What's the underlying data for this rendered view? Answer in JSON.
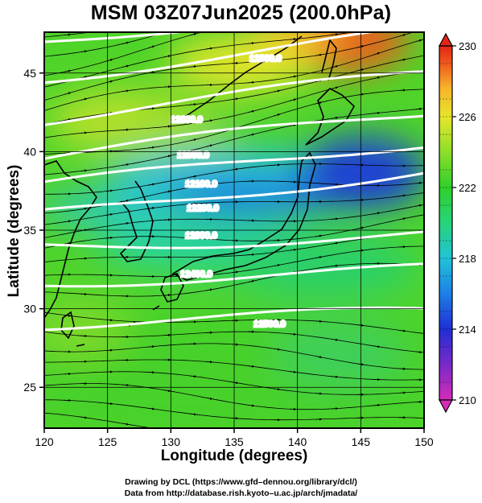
{
  "title": "MSM 03Z07Jun2025 (200.0hPa)",
  "x_axis": {
    "label": "Longitude (degrees)",
    "ticks": [
      "120",
      "125",
      "130",
      "135",
      "140",
      "145",
      "150"
    ],
    "range": [
      120,
      150
    ]
  },
  "y_axis": {
    "label": "Latitude  (degrees)",
    "ticks": [
      "25",
      "30",
      "35",
      "40",
      "45"
    ],
    "range": [
      22.4,
      47.6
    ]
  },
  "colorbar": {
    "ticks": [
      "210",
      "214",
      "218",
      "222",
      "226",
      "230"
    ],
    "range": [
      210,
      230
    ],
    "colors": [
      "#d52cb8",
      "#7a29c8",
      "#1f2fd6",
      "#1d7fe6",
      "#21c3d8",
      "#26d47a",
      "#2fd12a",
      "#9fe02b",
      "#e7e62c",
      "#f7b42a",
      "#ef5a1c",
      "#e32517"
    ]
  },
  "contour_labels": [
    "12000.0",
    "12000.0",
    "12050.0",
    "12100.0",
    "12200.0",
    "12300.0",
    "12400.0",
    "12500.0"
  ],
  "credit": {
    "line1": "Drawing by DCL (https://www.gfd–dennou.org/library/dcl/)",
    "line2": "Data from http://database.rish.kyoto–u.ac.jp/arch/jmadata/"
  }
}
